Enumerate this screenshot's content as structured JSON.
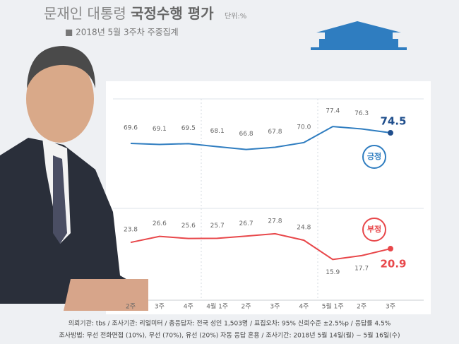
{
  "chart_data": {
    "type": "line",
    "title": "문재인 대통령 ",
    "title_bold": "국정수행 평가",
    "unit": "단위:%",
    "subtitle": "■ 2018년 5월 3주차 주중집계",
    "categories": [
      "2주",
      "3주",
      "4주",
      "4월 1주",
      "2주",
      "3주",
      "4주",
      "5월 1주",
      "2주",
      "3주"
    ],
    "series": [
      {
        "name": "긍정",
        "color": "#2f7dc0",
        "values": [
          69.6,
          69.1,
          69.5,
          68.1,
          66.8,
          67.8,
          70.0,
          77.4,
          76.3,
          74.5
        ],
        "value_labels": [
          "69.6",
          "69.1",
          "69.5",
          "68.1",
          "66.8",
          "67.8",
          "70.0",
          "77.4",
          "76.3",
          "74.5"
        ]
      },
      {
        "name": "부정",
        "color": "#e8474a",
        "values": [
          23.8,
          26.6,
          25.6,
          25.7,
          26.7,
          27.8,
          24.8,
          15.9,
          17.7,
          20.9
        ],
        "value_labels": [
          "23.8",
          "26.6",
          "25.6",
          "25.7",
          "26.7",
          "27.8",
          "24.8",
          "15.9",
          "17.7",
          "20.9"
        ]
      }
    ],
    "ylim": [
      0,
      100
    ],
    "footnotes": [
      "의뢰기관: tbs / 조사기관: 리얼미터 / 총응답자: 전국 성인 1,503명 / 표집오차: 95% 신뢰수준 ±2.5%p / 응답률 4.5%",
      "조사방법: 무선 전화면접 (10%), 무선 (70%), 유선 (20%) 자동 응답 혼용 / 조사기간: 2018년 5월 14일(월) ~ 5월 16일(수)"
    ]
  }
}
